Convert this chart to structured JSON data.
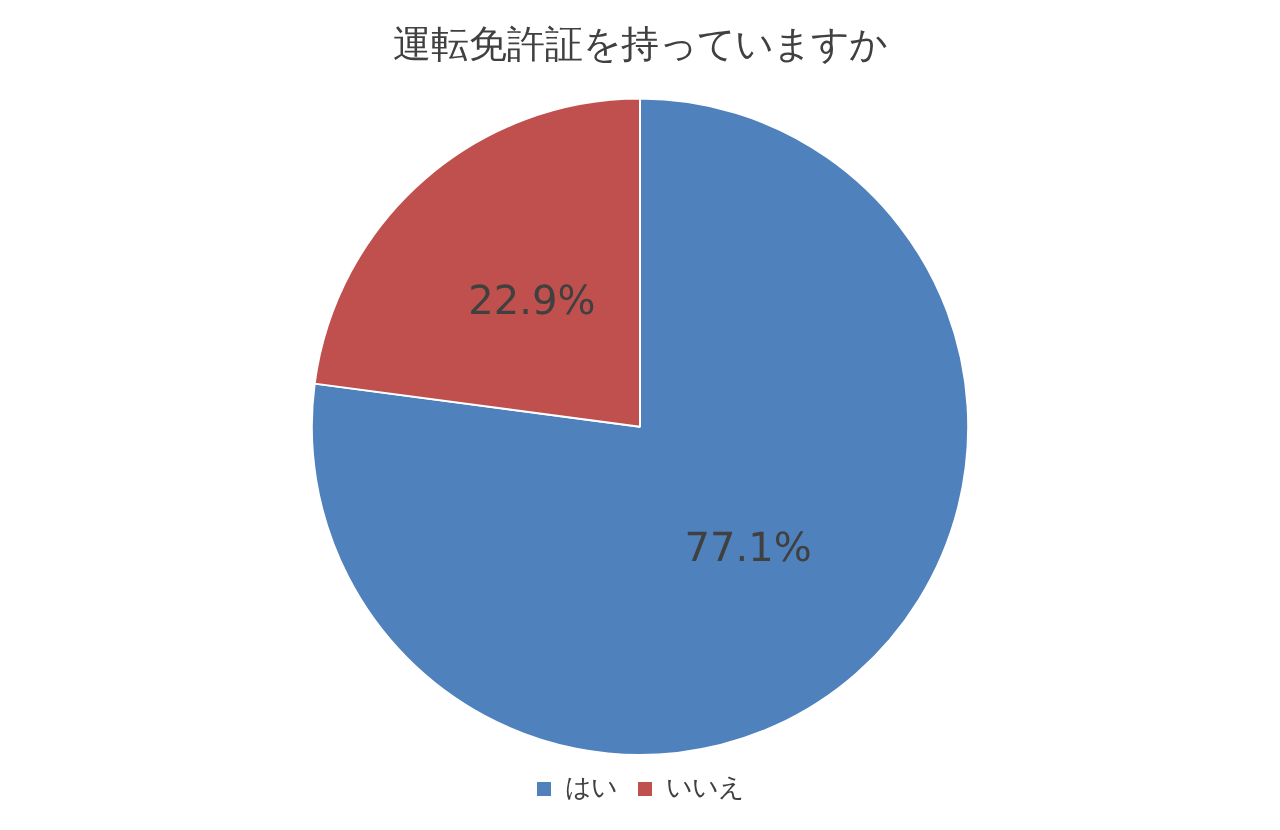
{
  "chart_data": {
    "type": "pie",
    "title": "運転免許証を持っていますか",
    "categories": [
      "はい",
      "いいえ"
    ],
    "values": [
      77.1,
      22.9
    ],
    "colors": [
      "#4f81bd",
      "#c0504d"
    ],
    "value_labels": [
      "77.1%",
      "22.9%"
    ],
    "legend": "bottom"
  }
}
